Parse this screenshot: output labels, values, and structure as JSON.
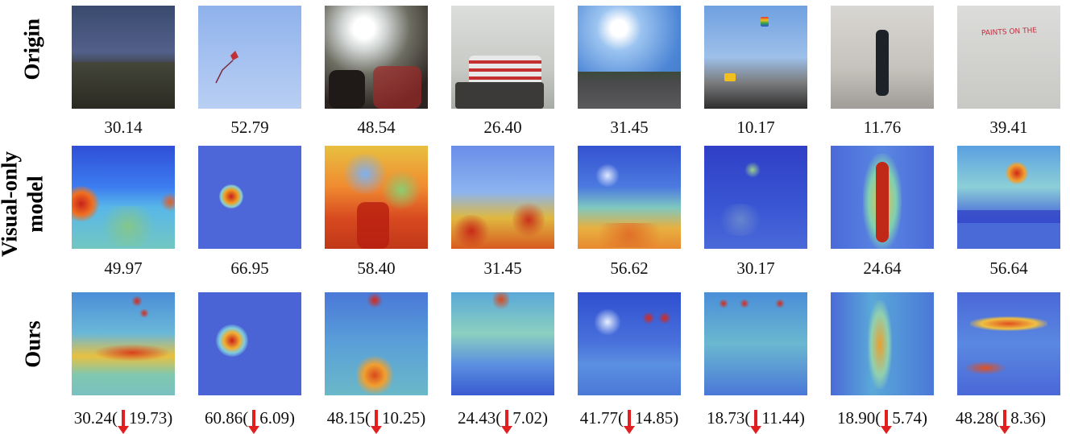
{
  "rows": {
    "origin_label": "Origin",
    "visual_label_line1": "Visual-only",
    "visual_label_line2": "model",
    "ours_label": "Ours"
  },
  "columns": [
    {
      "origin_score": "30.14",
      "visual_score": "49.97",
      "ours_score": "30.24(",
      "ours_drop": "19.73)"
    },
    {
      "origin_score": "52.79",
      "visual_score": "66.95",
      "ours_score": "60.86(",
      "ours_drop": "6.09)"
    },
    {
      "origin_score": "48.54",
      "visual_score": "58.40",
      "ours_score": "48.15(",
      "ours_drop": "10.25)"
    },
    {
      "origin_score": "26.40",
      "visual_score": "31.45",
      "ours_score": "24.43(",
      "ours_drop": "7.02)"
    },
    {
      "origin_score": "31.45",
      "visual_score": "56.62",
      "ours_score": "41.77(",
      "ours_drop": "14.85)"
    },
    {
      "origin_score": "10.17",
      "visual_score": "30.17",
      "ours_score": "18.73(",
      "ours_drop": "11.44)"
    },
    {
      "origin_score": "11.76",
      "visual_score": "24.64",
      "ours_score": "18.90(",
      "ours_drop": "5.74)"
    },
    {
      "origin_score": "39.41",
      "visual_score": "56.64",
      "ours_score": "48.28(",
      "ours_drop": "8.36)"
    }
  ],
  "image_texts": {
    "whiteboard": "PAINTS ON THE"
  },
  "colors": {
    "arrow": "#e02020",
    "heat_low": "#3a5bd9",
    "heat_high": "#d7301f"
  }
}
